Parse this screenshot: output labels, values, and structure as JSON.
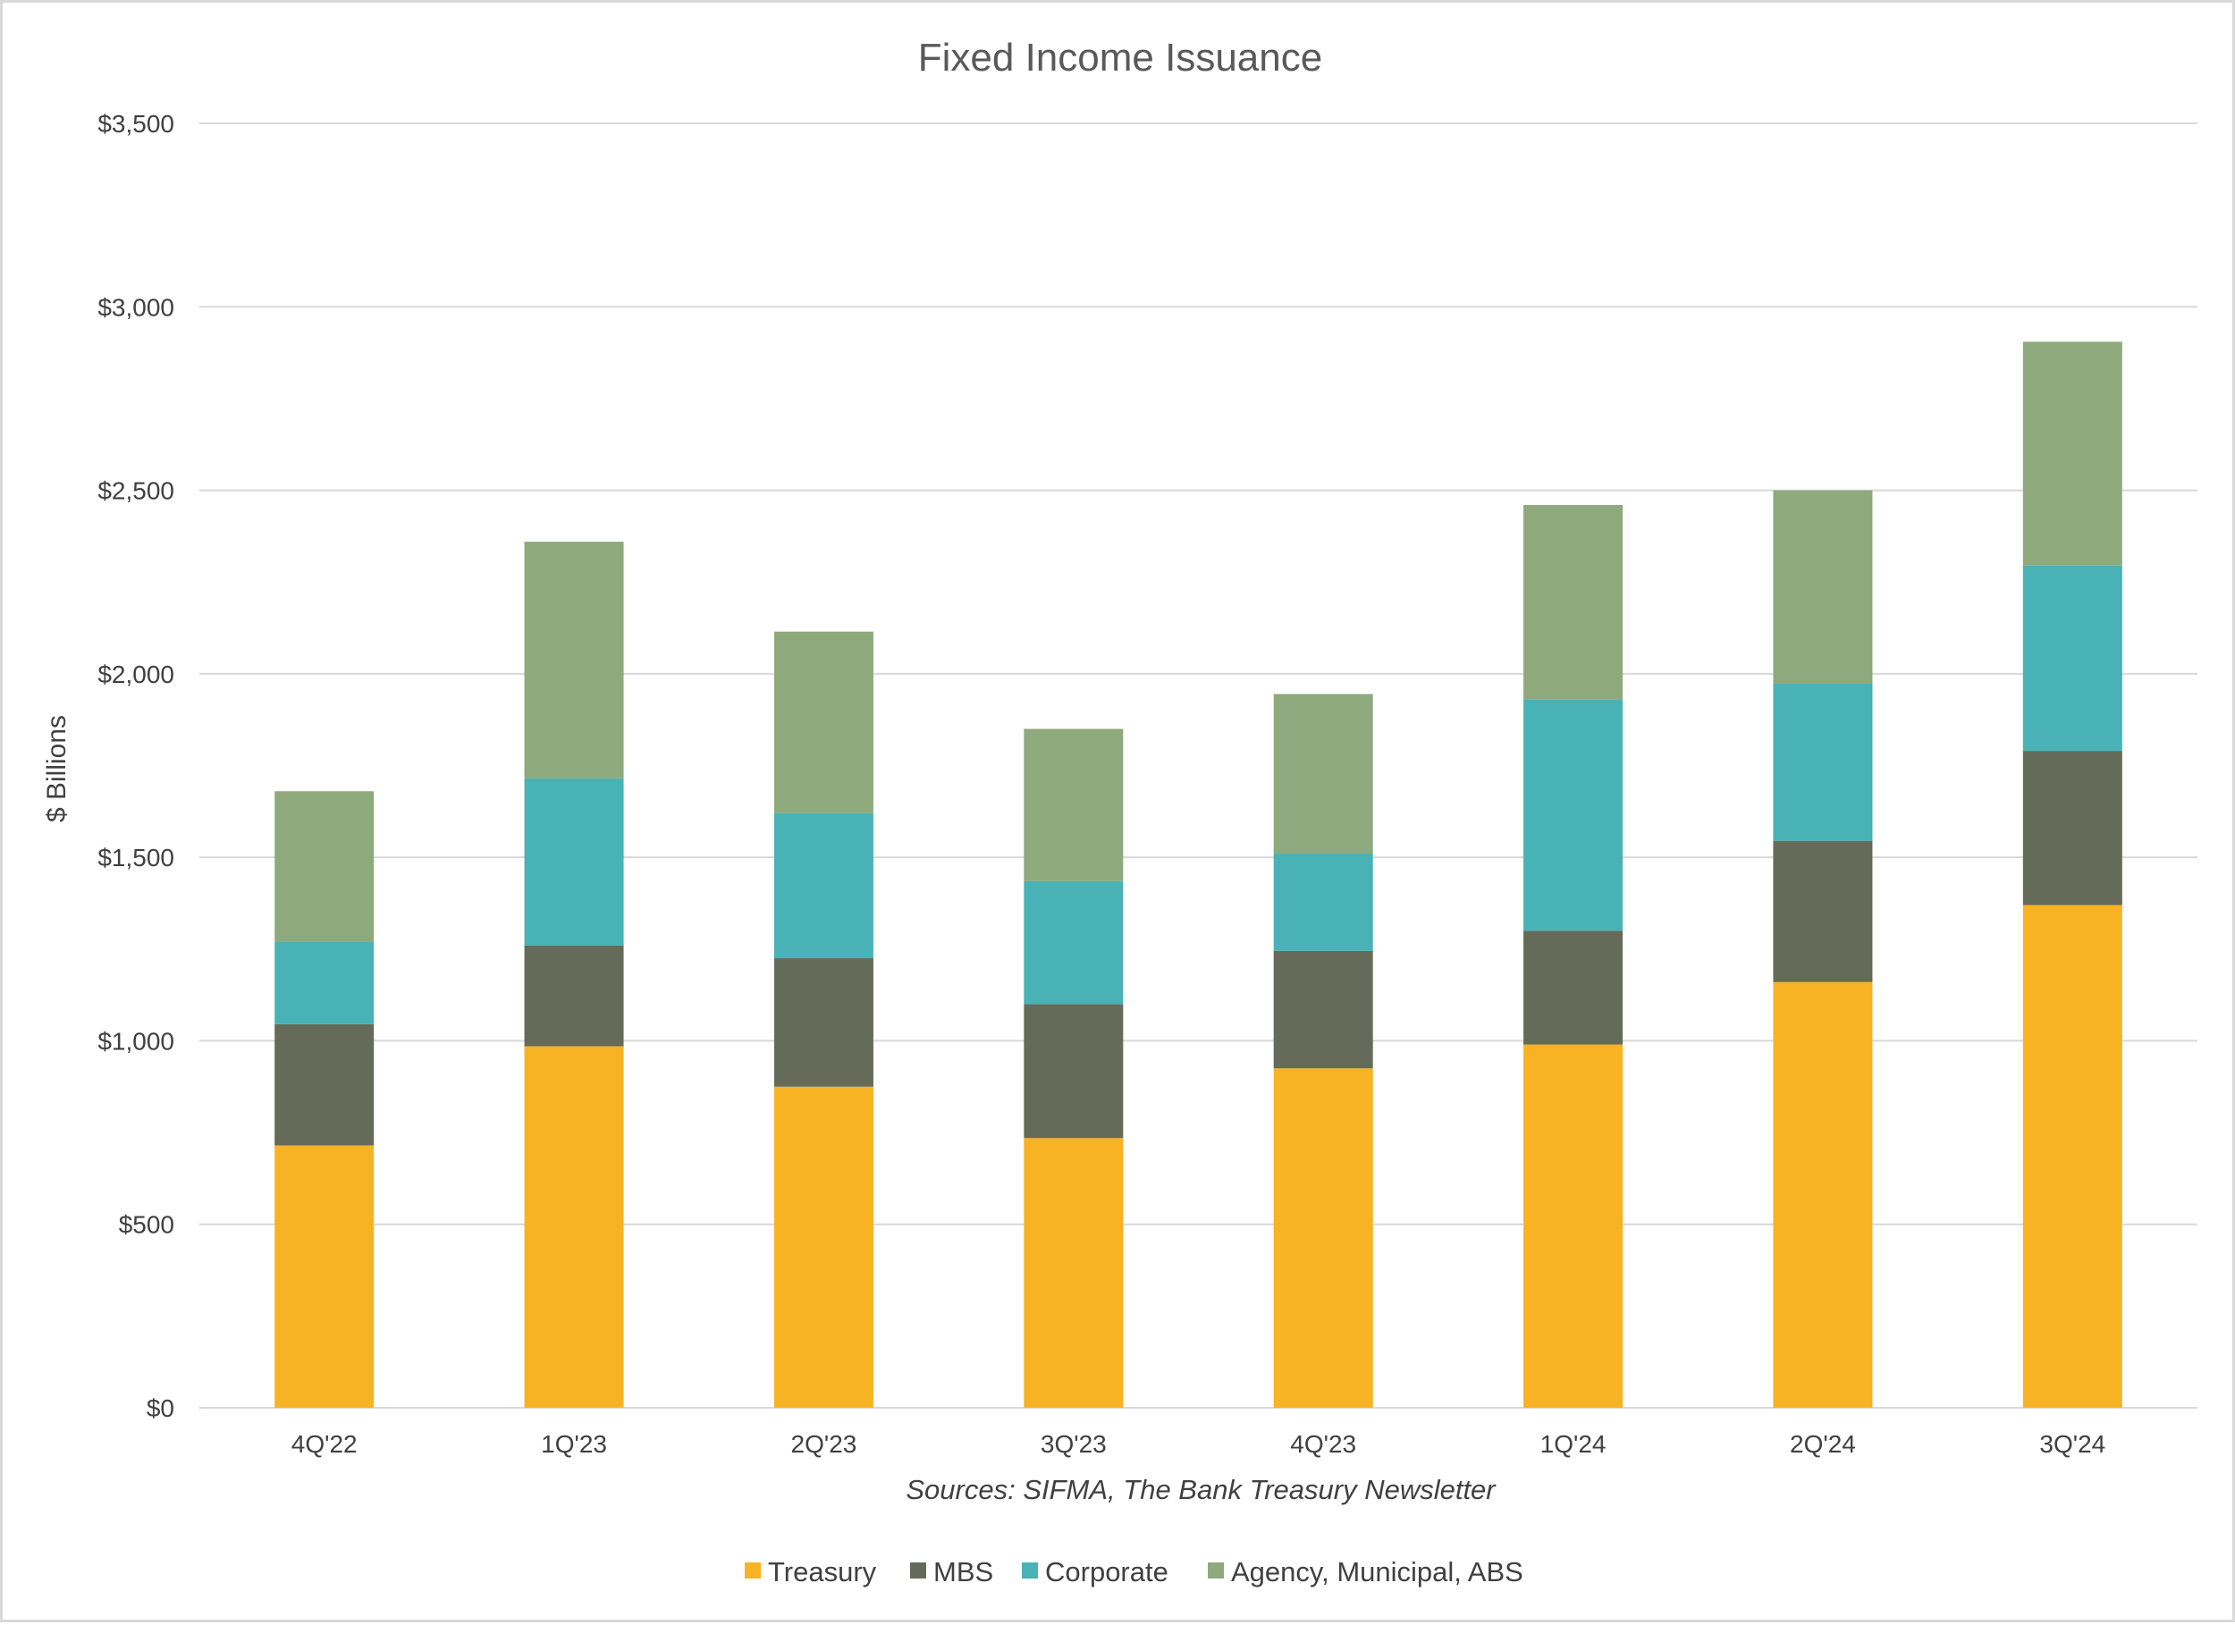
{
  "chart_data": {
    "type": "bar",
    "stacked": true,
    "title": "Fixed Income Issuance",
    "ylabel": "$ Billions",
    "xlabel": "",
    "source": "Sources: SIFMA, The Bank Treasury Newsletter",
    "ylim": [
      0,
      3500
    ],
    "y_ticks": [
      0,
      500,
      1000,
      1500,
      2000,
      2500,
      3000,
      3500
    ],
    "y_tick_labels": [
      "$0",
      "$500",
      "$1,000",
      "$1,500",
      "$2,000",
      "$2,500",
      "$3,000",
      "$3,500"
    ],
    "grid": true,
    "legend_position": "bottom",
    "categories": [
      "4Q'22",
      "1Q'23",
      "2Q'23",
      "3Q'23",
      "4Q'23",
      "1Q'24",
      "2Q'24",
      "3Q'24"
    ],
    "series": [
      {
        "name": "Treasury",
        "color": "#f7b324",
        "values": [
          715,
          985,
          875,
          735,
          925,
          990,
          1160,
          1370
        ]
      },
      {
        "name": "MBS",
        "color": "#656b58",
        "values": [
          330,
          275,
          350,
          365,
          320,
          310,
          385,
          420
        ]
      },
      {
        "name": "Corporate",
        "color": "#48b2b6",
        "values": [
          225,
          455,
          395,
          335,
          265,
          630,
          430,
          505
        ]
      },
      {
        "name": "Agency, Municipal, ABS",
        "color": "#8eaa7d",
        "values": [
          410,
          645,
          495,
          415,
          435,
          530,
          525,
          610
        ]
      }
    ]
  }
}
